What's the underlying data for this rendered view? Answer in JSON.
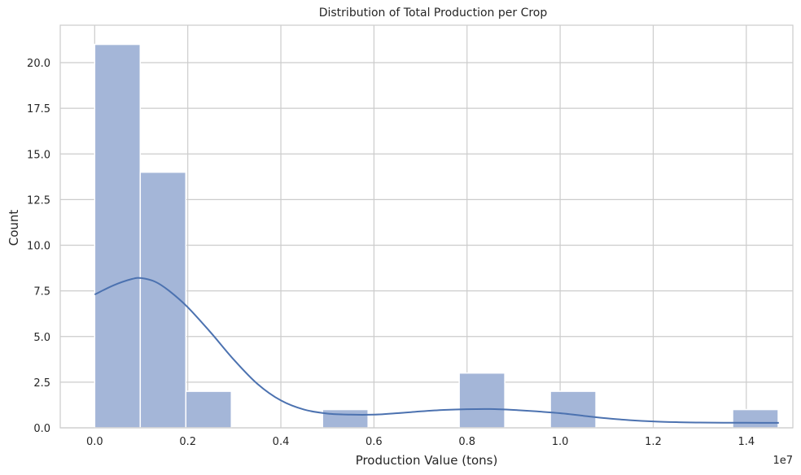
{
  "chart_data": {
    "type": "bar",
    "title": "Distribution of Total Production per Crop",
    "xlabel": "Production Value (tons)",
    "ylabel": "Count",
    "x_offset_label": "1e7",
    "xlim": [
      -0.074,
      1.5
    ],
    "ylim": [
      0,
      22.05
    ],
    "x_ticks": [
      0.0,
      0.2,
      0.4,
      0.6,
      0.8,
      1.0,
      1.2,
      1.4
    ],
    "x_tick_labels": [
      "0.0",
      "0.2",
      "0.4",
      "0.6",
      "0.8",
      "1.0",
      "1.2",
      "1.4"
    ],
    "y_ticks": [
      0,
      2.5,
      5,
      7.5,
      10,
      12.5,
      15,
      17.5,
      20
    ],
    "y_tick_labels": [
      "0.0",
      "2.5",
      "5.0",
      "7.5",
      "10.0",
      "12.5",
      "15.0",
      "17.5",
      "20.0"
    ],
    "grid": true,
    "bin_width": 0.0979,
    "bins": [
      {
        "start": 0.0,
        "count": 21
      },
      {
        "start": 0.0979,
        "count": 14
      },
      {
        "start": 0.1958,
        "count": 2
      },
      {
        "start": 0.2937,
        "count": 0
      },
      {
        "start": 0.3916,
        "count": 0
      },
      {
        "start": 0.4895,
        "count": 1
      },
      {
        "start": 0.5874,
        "count": 0
      },
      {
        "start": 0.6853,
        "count": 0
      },
      {
        "start": 0.7832,
        "count": 3
      },
      {
        "start": 0.8811,
        "count": 0
      },
      {
        "start": 0.979,
        "count": 2
      },
      {
        "start": 1.0769,
        "count": 0
      },
      {
        "start": 1.1748,
        "count": 0
      },
      {
        "start": 1.2727,
        "count": 0
      },
      {
        "start": 1.3706,
        "count": 1
      }
    ],
    "kde": [
      [
        0.0,
        7.3
      ],
      [
        0.04,
        7.8
      ],
      [
        0.08,
        8.15
      ],
      [
        0.1,
        8.2
      ],
      [
        0.13,
        8.0
      ],
      [
        0.16,
        7.5
      ],
      [
        0.2,
        6.6
      ],
      [
        0.25,
        5.2
      ],
      [
        0.3,
        3.7
      ],
      [
        0.35,
        2.4
      ],
      [
        0.4,
        1.5
      ],
      [
        0.45,
        1.0
      ],
      [
        0.5,
        0.78
      ],
      [
        0.55,
        0.72
      ],
      [
        0.6,
        0.72
      ],
      [
        0.65,
        0.8
      ],
      [
        0.7,
        0.9
      ],
      [
        0.75,
        0.98
      ],
      [
        0.8,
        1.02
      ],
      [
        0.85,
        1.03
      ],
      [
        0.9,
        0.98
      ],
      [
        0.95,
        0.9
      ],
      [
        1.0,
        0.8
      ],
      [
        1.05,
        0.66
      ],
      [
        1.1,
        0.52
      ],
      [
        1.15,
        0.42
      ],
      [
        1.2,
        0.35
      ],
      [
        1.25,
        0.31
      ],
      [
        1.3,
        0.29
      ],
      [
        1.35,
        0.28
      ],
      [
        1.4,
        0.28
      ],
      [
        1.47,
        0.27
      ]
    ],
    "colors": {
      "bar_fill": "#a4b6d8",
      "bar_edge": "#ffffff",
      "kde_line": "#4c72b0",
      "grid": "#cccccc",
      "spine": "#cccccc"
    }
  }
}
